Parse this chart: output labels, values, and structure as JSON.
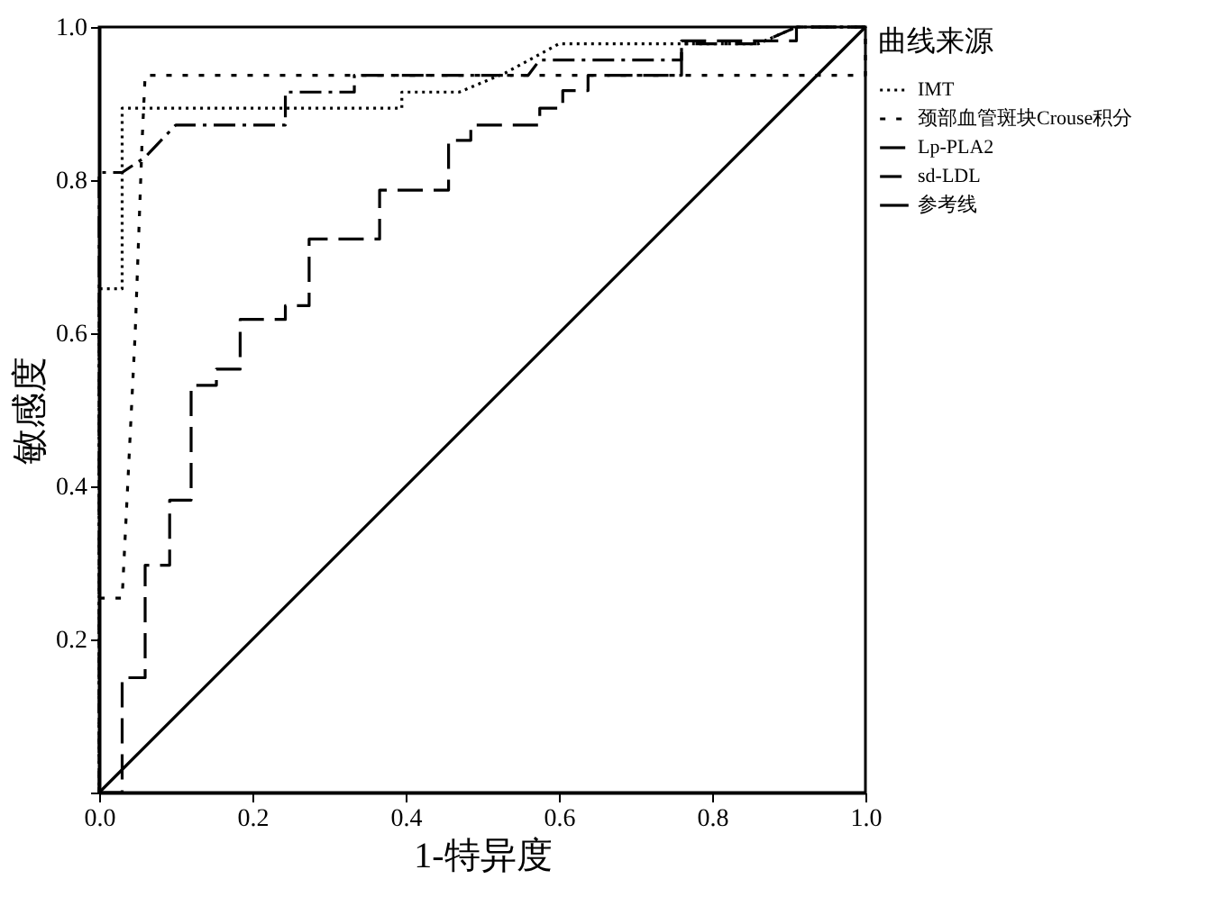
{
  "chart_data": {
    "type": "line",
    "xlabel": "1-特异度",
    "ylabel": "敏感度",
    "legend_title": "曲线来源",
    "legend": "right",
    "grid": false,
    "marker": "none",
    "xlim": [
      0,
      1
    ],
    "ylim": [
      0,
      1
    ],
    "xticks": [
      {
        "value": 0,
        "label": "0.0"
      },
      {
        "value": 0.2,
        "label": "0.2"
      },
      {
        "value": 0.4,
        "label": "0.4"
      },
      {
        "value": 0.6,
        "label": "0.6"
      },
      {
        "value": 0.8,
        "label": "0.8"
      },
      {
        "value": 1,
        "label": "1.0"
      }
    ],
    "yticks": [
      {
        "value": 0,
        "label": null
      },
      {
        "value": 0.2,
        "label": "0.2"
      },
      {
        "value": 0.4,
        "label": "0.4"
      },
      {
        "value": 0.6,
        "label": "0.6"
      },
      {
        "value": 0.8,
        "label": "0.8"
      },
      {
        "value": 1,
        "label": "1.0"
      }
    ],
    "series": [
      {
        "name": "IMT",
        "color": "#000000",
        "line_style": "dotted",
        "x": [
          0,
          0,
          0.03,
          0.03,
          0.395,
          0.395,
          0.47,
          0.53,
          0.6,
          0.86,
          0.91,
          1
        ],
        "values": [
          0,
          0.658,
          0.658,
          0.894,
          0.894,
          0.915,
          0.915,
          0.94,
          0.978,
          0.978,
          1,
          1
        ]
      },
      {
        "name": "颈部血管斑块Crouse积分",
        "color": "#000000",
        "line_style": "dashed",
        "x": [
          0,
          0,
          0.03,
          0.047,
          0.056,
          0.06,
          1,
          1
        ],
        "values": [
          0,
          0.254,
          0.254,
          0.6,
          0.85,
          0.937,
          0.937,
          1
        ]
      },
      {
        "name": "Lp-PLA2",
        "color": "#000000",
        "line_style": "dashed",
        "x": [
          0,
          0.03,
          0.03,
          0.06,
          0.06,
          0.092,
          0.092,
          0.12,
          0.12,
          0.153,
          0.153,
          0.184,
          0.184,
          0.243,
          0.243,
          0.274,
          0.274,
          0.366,
          0.366,
          0.456,
          0.456,
          0.485,
          0.485,
          0.575,
          0.575,
          0.605,
          0.605,
          0.638,
          0.638,
          0.76,
          0.76,
          0.91,
          0.91,
          1
        ],
        "values": [
          0,
          0,
          0.15,
          0.15,
          0.297,
          0.297,
          0.382,
          0.382,
          0.532,
          0.532,
          0.553,
          0.553,
          0.618,
          0.618,
          0.636,
          0.636,
          0.723,
          0.723,
          0.787,
          0.787,
          0.852,
          0.852,
          0.872,
          0.872,
          0.894,
          0.894,
          0.917,
          0.917,
          0.937,
          0.937,
          0.982,
          0.982,
          1,
          1
        ]
      },
      {
        "name": "sd-LDL",
        "color": "#000000",
        "line_style": "dashed",
        "x": [
          0,
          0,
          0.03,
          0.06,
          0.1,
          0.243,
          0.243,
          0.333,
          0.333,
          0.56,
          0.575,
          0.76,
          0.76,
          0.86,
          0.91,
          1
        ],
        "values": [
          0,
          0.81,
          0.81,
          0.83,
          0.872,
          0.872,
          0.915,
          0.915,
          0.937,
          0.937,
          0.957,
          0.957,
          0.978,
          0.978,
          1,
          1
        ]
      },
      {
        "name": "参考线",
        "color": "#000000",
        "line_style": "solid",
        "x": [
          0,
          1
        ],
        "values": [
          0,
          1
        ]
      }
    ]
  }
}
